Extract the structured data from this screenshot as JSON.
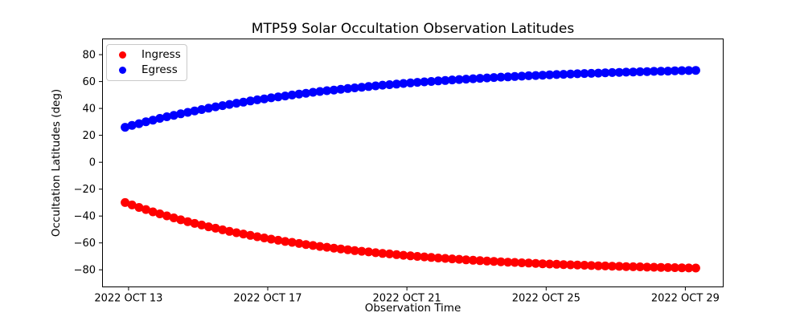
{
  "chart_data": {
    "type": "scatter",
    "title": "MTP59 Solar Occultation Observation Latitudes",
    "xlabel": "Observation Time",
    "ylabel": "Occultation Latitudes (deg)",
    "grid": false,
    "legend_position": "upper left",
    "xlim": [
      -0.76,
      17.1
    ],
    "ylim": [
      -93,
      92
    ],
    "x_unit": "days since 2022 OCT 13",
    "x_ticks": [
      0,
      4,
      8,
      12,
      16
    ],
    "x_tick_labels": [
      "2022 OCT 13",
      "2022 OCT 17",
      "2022 OCT 21",
      "2022 OCT 25",
      "2022 OCT 29"
    ],
    "y_ticks": [
      -80,
      -60,
      -40,
      -20,
      0,
      20,
      40,
      60,
      80
    ],
    "x": [
      -0.1,
      0.1,
      0.3,
      0.5,
      0.7,
      0.9,
      1.1,
      1.3,
      1.5,
      1.7,
      1.9,
      2.1,
      2.3,
      2.5,
      2.7,
      2.9,
      3.1,
      3.3,
      3.5,
      3.7,
      3.9,
      4.1,
      4.3,
      4.5,
      4.7,
      4.9,
      5.1,
      5.3,
      5.5,
      5.7,
      5.9,
      6.1,
      6.3,
      6.5,
      6.7,
      6.9,
      7.1,
      7.3,
      7.5,
      7.7,
      7.9,
      8.1,
      8.3,
      8.5,
      8.7,
      8.9,
      9.1,
      9.3,
      9.5,
      9.7,
      9.9,
      10.1,
      10.3,
      10.5,
      10.7,
      10.9,
      11.1,
      11.3,
      11.5,
      11.7,
      11.9,
      12.1,
      12.3,
      12.5,
      12.7,
      12.9,
      13.1,
      13.3,
      13.5,
      13.7,
      13.9,
      14.1,
      14.3,
      14.5,
      14.7,
      14.9,
      15.1,
      15.3,
      15.5,
      15.7,
      15.9,
      16.1,
      16.3
    ],
    "series": [
      {
        "name": "Ingress",
        "color": "#ff0000",
        "marker": "circle",
        "values": [
          -30.0,
          -31.8,
          -33.6,
          -35.2,
          -36.9,
          -38.4,
          -39.9,
          -41.4,
          -42.8,
          -44.2,
          -45.5,
          -46.7,
          -48.0,
          -49.1,
          -50.3,
          -51.4,
          -52.4,
          -53.4,
          -54.4,
          -55.4,
          -56.3,
          -57.2,
          -58.0,
          -58.9,
          -59.6,
          -60.4,
          -61.2,
          -61.9,
          -62.6,
          -63.2,
          -63.9,
          -64.5,
          -65.1,
          -65.7,
          -66.2,
          -66.7,
          -67.3,
          -67.8,
          -68.2,
          -68.7,
          -69.2,
          -69.6,
          -70.0,
          -70.4,
          -70.8,
          -71.2,
          -71.5,
          -71.9,
          -72.2,
          -72.6,
          -72.9,
          -73.2,
          -73.5,
          -73.7,
          -74.0,
          -74.3,
          -74.5,
          -74.8,
          -75.0,
          -75.2,
          -75.5,
          -75.7,
          -75.9,
          -76.1,
          -76.3,
          -76.4,
          -76.6,
          -76.8,
          -77.0,
          -77.1,
          -77.3,
          -77.4,
          -77.6,
          -77.7,
          -77.8,
          -78.0,
          -78.1,
          -78.2,
          -78.3,
          -78.4,
          -78.5,
          -78.6,
          -78.7
        ]
      },
      {
        "name": "Egress",
        "color": "#0000ff",
        "marker": "circle",
        "values": [
          26.0,
          27.4,
          28.7,
          30.1,
          31.3,
          32.6,
          33.8,
          34.9,
          36.0,
          37.1,
          38.2,
          39.2,
          40.2,
          41.2,
          42.1,
          43.0,
          43.9,
          44.7,
          45.6,
          46.4,
          47.1,
          47.9,
          48.6,
          49.3,
          50.0,
          50.7,
          51.3,
          52.0,
          52.6,
          53.2,
          53.7,
          54.3,
          54.8,
          55.3,
          55.8,
          56.3,
          56.8,
          57.3,
          57.7,
          58.1,
          58.6,
          59.0,
          59.4,
          59.8,
          60.1,
          60.5,
          60.8,
          61.2,
          61.5,
          61.8,
          62.1,
          62.4,
          62.7,
          63.0,
          63.3,
          63.5,
          63.8,
          64.0,
          64.3,
          64.5,
          64.7,
          65.0,
          65.2,
          65.4,
          65.6,
          65.8,
          66.0,
          66.1,
          66.3,
          66.5,
          66.7,
          66.8,
          67.0,
          67.1,
          67.3,
          67.4,
          67.6,
          67.7,
          67.8,
          68.0,
          68.1,
          68.2,
          68.3
        ]
      }
    ]
  }
}
